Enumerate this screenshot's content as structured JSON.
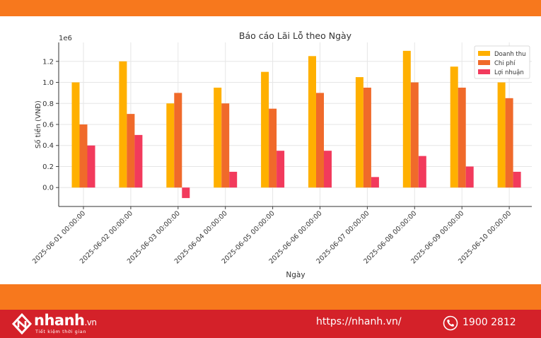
{
  "chart_data": {
    "type": "bar",
    "title": "Báo cáo Lãi Lỗ theo Ngày",
    "xlabel": "Ngày",
    "ylabel": "Số tiền (VNĐ)",
    "y_offset_label": "1e6",
    "ylim": [
      -0.18,
      1.38
    ],
    "yticks": [
      "0.0",
      "0.2",
      "0.4",
      "0.6",
      "0.8",
      "1.0",
      "1.2"
    ],
    "grid": true,
    "legend_position": "top-right",
    "categories": [
      "2025-06-01 00:00:00",
      "2025-06-02 00:00:00",
      "2025-06-03 00:00:00",
      "2025-06-04 00:00:00",
      "2025-06-05 00:00:00",
      "2025-06-06 00:00:00",
      "2025-06-07 00:00:00",
      "2025-06-08 00:00:00",
      "2025-06-09 00:00:00",
      "2025-06-10 00:00:00"
    ],
    "series": [
      {
        "name": "Doanh thu",
        "color": "#ffb000",
        "values": [
          1.0,
          1.2,
          0.8,
          0.95,
          1.1,
          1.25,
          1.05,
          1.3,
          1.15,
          1.0
        ]
      },
      {
        "name": "Chi phí",
        "color": "#f06a2a",
        "values": [
          0.6,
          0.7,
          0.9,
          0.8,
          0.75,
          0.9,
          0.95,
          1.0,
          0.95,
          0.85
        ]
      },
      {
        "name": "Lợi nhuận",
        "color": "#f23a5c",
        "values": [
          0.4,
          0.5,
          -0.1,
          0.15,
          0.35,
          0.35,
          0.1,
          0.3,
          0.2,
          0.15
        ]
      }
    ]
  },
  "footer": {
    "brand_name": "nhanh",
    "brand_tld": ".vn",
    "slogan": "Tiết kiệm thời gian",
    "url": "https://nhanh.vn/",
    "phone": "1900 2812",
    "icons": {
      "logo": "nhanh-logo-icon",
      "phone": "phone-icon"
    }
  },
  "colors": {
    "top_bar": "#f7781d",
    "mid_bar": "#f7781d",
    "footer_bg": "#d42129"
  }
}
